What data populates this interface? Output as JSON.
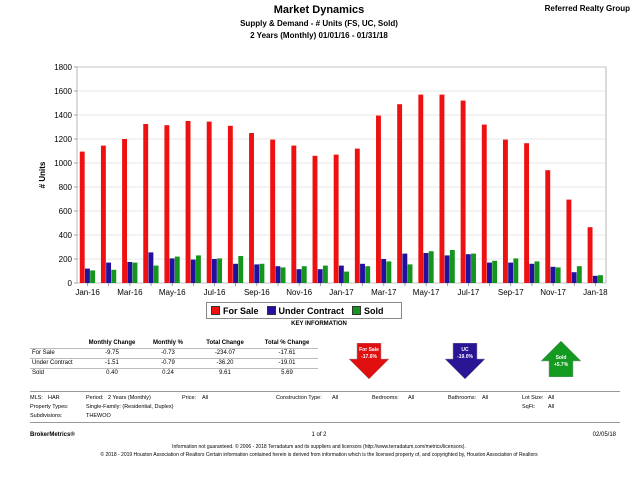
{
  "header": {
    "title": "Market Dynamics",
    "brand": "Referred Realty Group",
    "subtitle1": "Supply & Demand - # Units (FS, UC, Sold)",
    "subtitle2": "2 Years (Monthly) 01/01/16 - 01/31/18"
  },
  "chart_data": {
    "type": "bar",
    "ylabel": "# Units",
    "ylim": [
      0,
      1800
    ],
    "yticks": [
      0,
      200,
      400,
      600,
      800,
      1000,
      1200,
      1400,
      1600,
      1800
    ],
    "categories": [
      "Jan-16",
      "Feb-16",
      "Mar-16",
      "Apr-16",
      "May-16",
      "Jun-16",
      "Jul-16",
      "Aug-16",
      "Sep-16",
      "Oct-16",
      "Nov-16",
      "Dec-16",
      "Jan-17",
      "Feb-17",
      "Mar-17",
      "Apr-17",
      "May-17",
      "Jun-17",
      "Jul-17",
      "Aug-17",
      "Sep-17",
      "Oct-17",
      "Nov-17",
      "Dec-17",
      "Jan-18"
    ],
    "x_tick_labels": [
      "Jan-16",
      "",
      "Mar-16",
      "",
      "May-16",
      "",
      "Jul-16",
      "",
      "Sep-16",
      "",
      "Nov-16",
      "",
      "Jan-17",
      "",
      "Mar-17",
      "",
      "May-17",
      "",
      "Jul-17",
      "",
      "Sep-17",
      "",
      "Nov-17",
      "",
      "Jan-18"
    ],
    "series": [
      {
        "name": "For Sale",
        "color": "#ee1111",
        "values": [
          1095,
          1145,
          1200,
          1325,
          1315,
          1350,
          1345,
          1310,
          1250,
          1195,
          1145,
          1060,
          1070,
          1120,
          1395,
          1490,
          1570,
          1570,
          1520,
          1320,
          1195,
          1165,
          940,
          695,
          465
        ]
      },
      {
        "name": "Under Contract",
        "color": "#22119e",
        "values": [
          120,
          170,
          175,
          255,
          205,
          195,
          200,
          160,
          155,
          140,
          115,
          115,
          145,
          160,
          200,
          245,
          250,
          230,
          240,
          170,
          170,
          160,
          135,
          90,
          60
        ]
      },
      {
        "name": "Sold",
        "color": "#14951e",
        "values": [
          105,
          110,
          170,
          145,
          220,
          230,
          205,
          225,
          160,
          130,
          140,
          145,
          95,
          140,
          180,
          155,
          265,
          275,
          245,
          185,
          205,
          180,
          130,
          140,
          65
        ]
      }
    ],
    "legend": "bottom-center",
    "grid": true
  },
  "key_info": {
    "title": "KEY INFORMATION",
    "headers": [
      "",
      "Monthly Change",
      "Monthly %",
      "Total Change",
      "Total % Change"
    ],
    "rows": [
      [
        "For Sale",
        "-9.75",
        "-0.73",
        "-234.07",
        "-17.61"
      ],
      [
        "Under Contract",
        "-1.51",
        "-0.79",
        "-36.20",
        "-19.01"
      ],
      [
        "Sold",
        "0.40",
        "0.24",
        "9.61",
        "5.69"
      ]
    ],
    "arrows": [
      {
        "label": "For Sale",
        "value": "-17.6%",
        "color": "#e01010"
      },
      {
        "label": "UC",
        "value": "-19.0%",
        "color": "#2a1595"
      },
      {
        "label": "Sold",
        "value": "+5.7%",
        "color": "#149a20"
      }
    ]
  },
  "filters": {
    "mls_label": "MLS:",
    "mls": "HAR",
    "period_label": "Period:",
    "period": "2 Years (Monthly)",
    "price_label": "Price:",
    "price": "All",
    "construction_label": "Construction Type:",
    "construction": "All",
    "bedrooms_label": "Bedrooms:",
    "bedrooms": "All",
    "bathrooms_label": "Bathrooms:",
    "bathrooms": "All",
    "lot_label": "Lot Size:",
    "lot": "All",
    "ptype_label": "Property Types:",
    "ptype": "Single-Family: (Residential, Duplex)",
    "sqft_label": "SqFt:",
    "sqft": "All",
    "subdiv_label": "Subdivisions:",
    "subdiv": "THEWOO"
  },
  "footer": {
    "left": "BrokerMetrics®",
    "page": "1 of 2",
    "date": "02/05/18",
    "disclaimer1": "Information not guaranteed. © 2006 - 2018 Terradatum and its suppliers and licensors (http://www.terradatum.com/metrics/licensors).",
    "disclaimer2": "© 2018 - 2019 Houston Association of Realtors Certain information contained herein is derived from information which is the licensed property of, and copyrighted by, Houston Association of Realtors"
  }
}
